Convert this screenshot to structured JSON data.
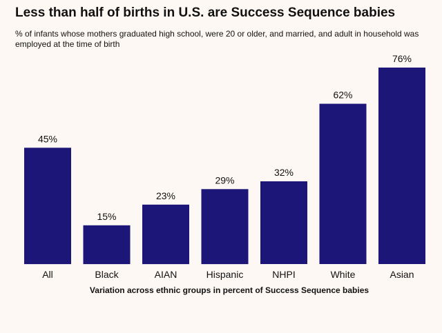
{
  "chart_data": {
    "type": "bar",
    "title": "Less than half of births in U.S. are Success Sequence babies",
    "subtitle": "% of infants whose mothers graduated high school, were 20 or older, and married, and adult in household was employed at the time of birth",
    "xlabel": "Variation across ethnic groups in percent of Success Sequence babies",
    "ylabel": "",
    "categories": [
      "All",
      "Black",
      "AIAN",
      "Hispanic",
      "NHPI",
      "White",
      "Asian"
    ],
    "values": [
      45,
      15,
      23,
      29,
      32,
      62,
      76
    ],
    "value_labels": [
      "45%",
      "15%",
      "23%",
      "29%",
      "32%",
      "62%",
      "76%"
    ],
    "ylim": [
      0,
      76
    ],
    "grid": false,
    "legend": "none",
    "colors": {
      "bar": "#1c1678",
      "background": "#fdf8f4",
      "text": "#111111"
    }
  }
}
